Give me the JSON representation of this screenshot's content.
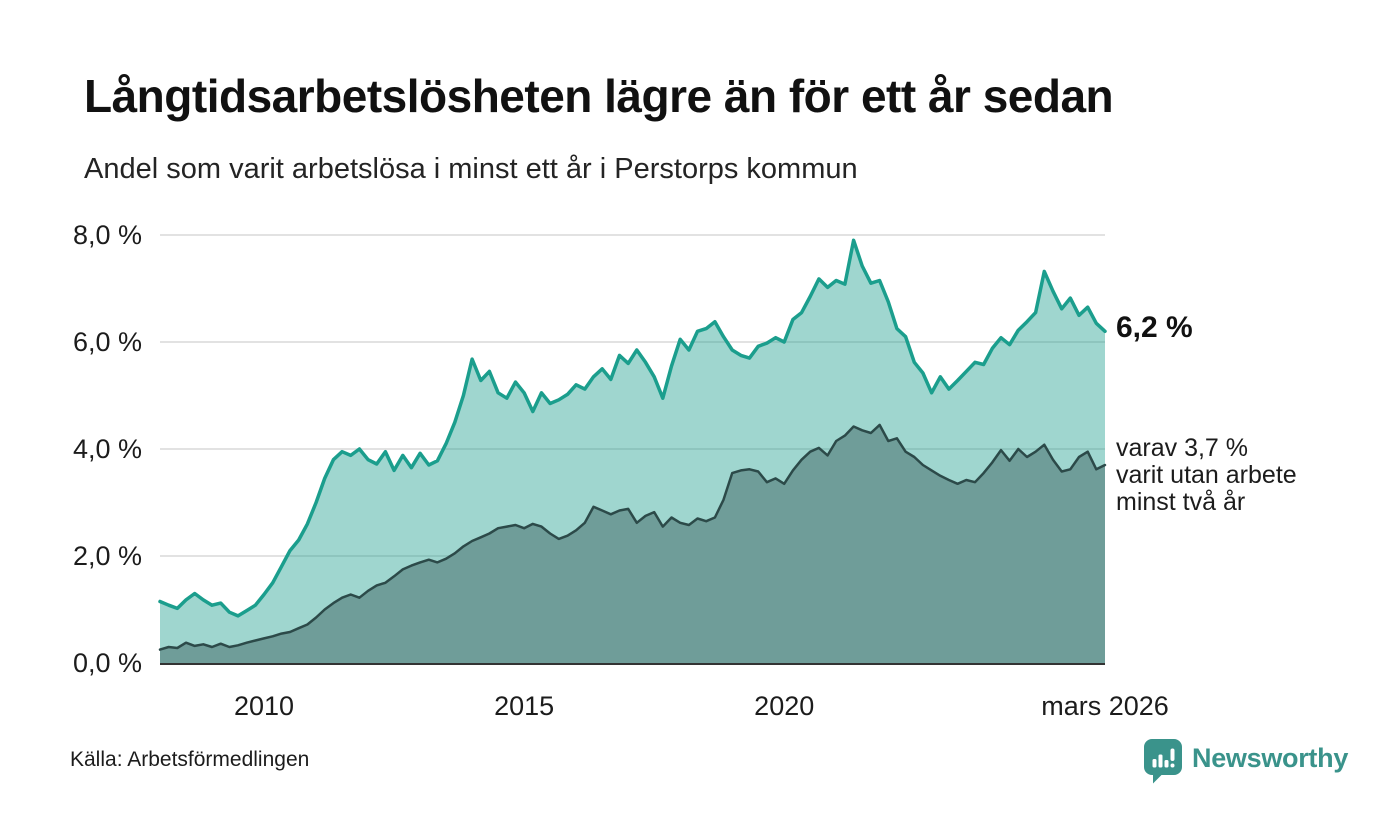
{
  "header": {
    "title": "Långtidsarbetslösheten lägre än för ett år sedan",
    "subtitle": "Andel som varit arbetslösa i minst ett år i Perstorps kommun"
  },
  "chart_data": {
    "type": "area",
    "title": "Långtidsarbetslösheten lägre än för ett år sedan",
    "subtitle": "Andel som varit arbetslösa i minst ett år i Perstorps kommun",
    "unit": "%",
    "x_start": "2008-01",
    "x_end": "2026-03",
    "x_interval_months": 2,
    "x_start_year": 2008.0,
    "x_end_year": 2026.1667,
    "ylim": [
      0,
      8
    ],
    "grid": true,
    "yticks": [
      {
        "value": 0,
        "label": "0,0 %"
      },
      {
        "value": 2,
        "label": "2,0 %"
      },
      {
        "value": 4,
        "label": "4,0 %"
      },
      {
        "value": 6,
        "label": "6,0 %"
      },
      {
        "value": 8,
        "label": "8,0 %"
      }
    ],
    "xticks": [
      {
        "value": 2010,
        "label": "2010"
      },
      {
        "value": 2015,
        "label": "2015"
      },
      {
        "value": 2020,
        "label": "2020"
      },
      {
        "value": 2026.1667,
        "label": "mars 2026"
      }
    ],
    "series": [
      {
        "name": "arbetslosa-minst-ett-ar",
        "end_label": "6,2 %",
        "end_value": 6.2,
        "line_color": "#1b9e8d",
        "fill_color": "rgba(27,158,141,0.42)",
        "line_width": 3.5,
        "values": [
          1.15,
          1.08,
          1.02,
          1.18,
          1.3,
          1.18,
          1.08,
          1.12,
          0.95,
          0.88,
          0.98,
          1.08,
          1.28,
          1.5,
          1.8,
          2.1,
          2.3,
          2.6,
          3.0,
          3.45,
          3.8,
          3.95,
          3.88,
          4.0,
          3.8,
          3.72,
          3.95,
          3.6,
          3.88,
          3.65,
          3.92,
          3.7,
          3.78,
          4.1,
          4.5,
          5.0,
          5.68,
          5.28,
          5.45,
          5.05,
          4.95,
          5.25,
          5.05,
          4.7,
          5.05,
          4.85,
          4.92,
          5.02,
          5.2,
          5.12,
          5.35,
          5.5,
          5.3,
          5.75,
          5.6,
          5.85,
          5.62,
          5.35,
          4.95,
          5.55,
          6.05,
          5.85,
          6.2,
          6.25,
          6.38,
          6.1,
          5.85,
          5.75,
          5.7,
          5.92,
          5.98,
          6.08,
          6.0,
          6.42,
          6.55,
          6.85,
          7.18,
          7.02,
          7.15,
          7.08,
          7.9,
          7.42,
          7.1,
          7.15,
          6.75,
          6.25,
          6.1,
          5.62,
          5.42,
          5.05,
          5.35,
          5.12,
          5.28,
          5.45,
          5.62,
          5.58,
          5.88,
          6.08,
          5.95,
          6.22,
          6.38,
          6.55,
          7.32,
          6.95,
          6.62,
          6.82,
          6.5,
          6.65,
          6.35,
          6.2
        ]
      },
      {
        "name": "utan-arbete-minst-tva-ar",
        "end_label": "varav 3,7 % varit utan arbete minst två år",
        "end_value": 3.7,
        "line_color": "#2c4a49",
        "fill_color": "#6f9d99",
        "line_width": 2.5,
        "values": [
          0.25,
          0.3,
          0.28,
          0.38,
          0.32,
          0.35,
          0.3,
          0.36,
          0.3,
          0.33,
          0.38,
          0.42,
          0.46,
          0.5,
          0.55,
          0.58,
          0.65,
          0.72,
          0.85,
          1.0,
          1.12,
          1.22,
          1.28,
          1.22,
          1.35,
          1.45,
          1.5,
          1.62,
          1.75,
          1.82,
          1.88,
          1.93,
          1.88,
          1.95,
          2.05,
          2.18,
          2.28,
          2.35,
          2.42,
          2.52,
          2.55,
          2.58,
          2.52,
          2.6,
          2.55,
          2.42,
          2.32,
          2.38,
          2.48,
          2.62,
          2.92,
          2.85,
          2.78,
          2.85,
          2.88,
          2.62,
          2.75,
          2.82,
          2.55,
          2.72,
          2.62,
          2.58,
          2.7,
          2.65,
          2.72,
          3.05,
          3.55,
          3.6,
          3.62,
          3.58,
          3.38,
          3.45,
          3.35,
          3.6,
          3.8,
          3.95,
          4.02,
          3.88,
          4.15,
          4.25,
          4.42,
          4.35,
          4.3,
          4.45,
          4.15,
          4.2,
          3.95,
          3.85,
          3.7,
          3.6,
          3.5,
          3.42,
          3.35,
          3.42,
          3.38,
          3.55,
          3.75,
          3.98,
          3.78,
          4.0,
          3.85,
          3.95,
          4.08,
          3.8,
          3.58,
          3.62,
          3.85,
          3.95,
          3.62,
          3.7
        ]
      }
    ],
    "legend_position": "right-annotations"
  },
  "annotations": {
    "total_value": "6,2 %",
    "two_years_lines": [
      "varav 3,7 %",
      "varit utan arbete",
      "minst två år"
    ]
  },
  "footer": {
    "source": "Källa: Arbetsförmedlingen",
    "brand": "Newsworthy"
  },
  "colors": {
    "accent_teal": "#1b9e8d",
    "fill_light": "rgba(27,158,141,0.42)",
    "fill_dark": "#6f9d99",
    "line_dark": "#2c4a49",
    "gridline": "#e2e2e2",
    "axis": "#333333",
    "brand_teal": "#3a938b",
    "text": "#1c1c1c"
  }
}
